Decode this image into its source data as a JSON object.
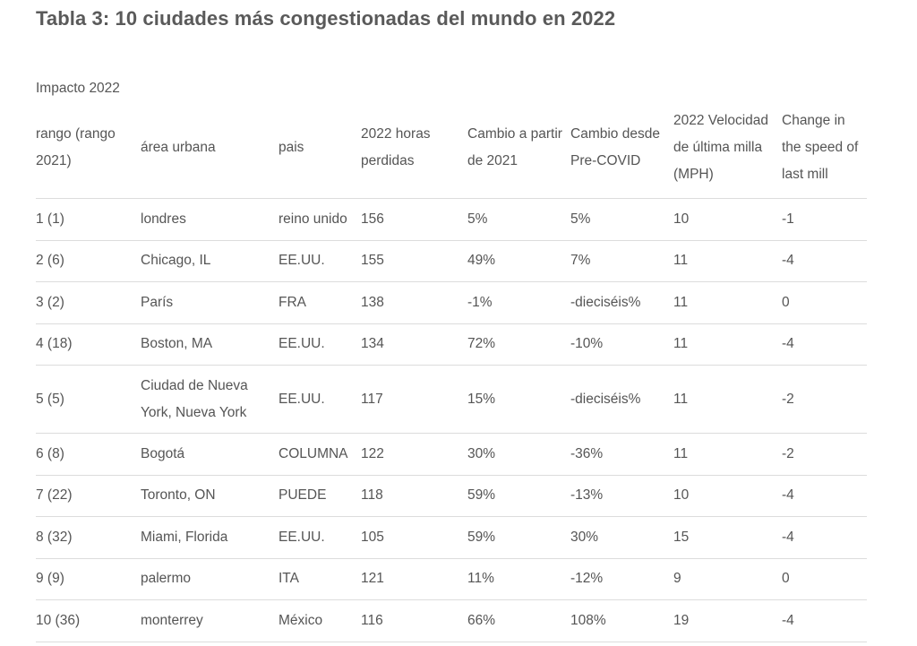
{
  "title": "Tabla 3: 10 ciudades más congestionadas del mundo en 2022",
  "group_label": "Impacto 2022",
  "headers": [
    "rango (rango 2021)",
    "área urbana",
    "pais",
    "2022 horas perdidas",
    "Cambio a partir de 2021",
    "Cambio desde Pre-COVID",
    "2022 Velocidad de última milla (MPH)",
    "Change in the speed of last mill"
  ],
  "rows": [
    [
      "1 (1)",
      "londres",
      "reino unido",
      "156",
      "5%",
      "5%",
      "10",
      "-1"
    ],
    [
      "2 (6)",
      "Chicago, IL",
      "EE.UU.",
      "155",
      "49%",
      "7%",
      "11",
      "-4"
    ],
    [
      "3 (2)",
      "París",
      "FRA",
      "138",
      "-1%",
      "-dieciséis%",
      "11",
      "0"
    ],
    [
      "4 (18)",
      "Boston, MA",
      "EE.UU.",
      "134",
      "72%",
      "-10%",
      "11",
      "-4"
    ],
    [
      "5 (5)",
      "Ciudad de Nueva York, Nueva York",
      "EE.UU.",
      "117",
      "15%",
      "-dieciséis%",
      "11",
      "-2"
    ],
    [
      "6 (8)",
      "Bogotá",
      "COLUMNA",
      "122",
      "30%",
      "-36%",
      "11",
      "-2"
    ],
    [
      "7 (22)",
      "Toronto, ON",
      "PUEDE",
      "118",
      "59%",
      "-13%",
      "10",
      "-4"
    ],
    [
      "8 (32)",
      "Miami, Florida",
      "EE.UU.",
      "105",
      "59%",
      "30%",
      "15",
      "-4"
    ],
    [
      "9 (9)",
      "palermo",
      "ITA",
      "121",
      "11%",
      "-12%",
      "9",
      "0"
    ],
    [
      "10 (36)",
      "monterrey",
      "México",
      "116",
      "66%",
      "108%",
      "19",
      "-4"
    ]
  ]
}
